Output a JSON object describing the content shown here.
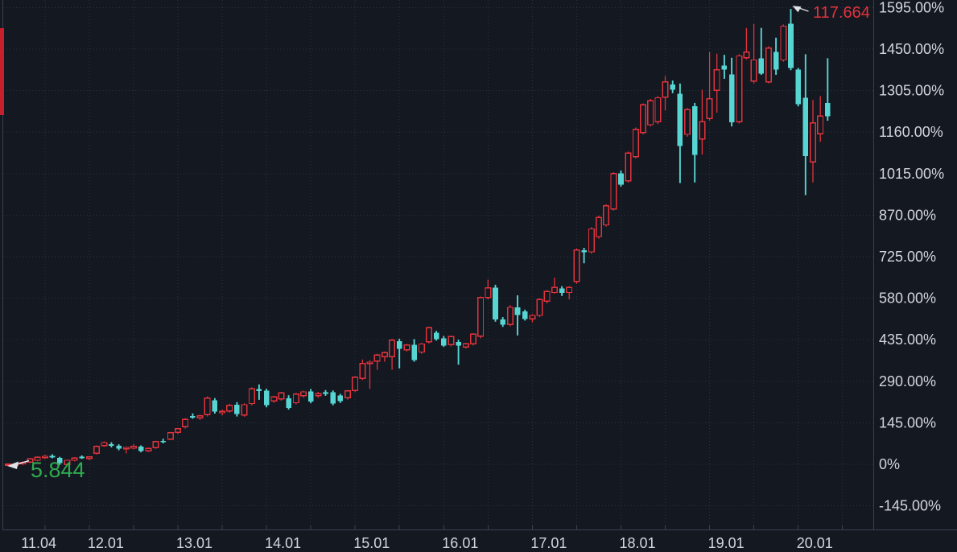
{
  "style": {
    "background": "#141821",
    "grid_color": "#2c3140",
    "axis_line_color": "#3a4050",
    "axis_text_color": "#d4d6dd",
    "up_color": "#e2333c",
    "down_color": "#57d5d2",
    "arrow_color": "#dfe3e8",
    "left_edge_marker_color": "#c5202c"
  },
  "chart_data": {
    "type": "candlestick",
    "title": "",
    "period": "monthly",
    "x_range": {
      "start": "2011.02",
      "end": "2020.05"
    },
    "y_axis": {
      "unit": "%",
      "tick_step_percent": 145,
      "min": -145,
      "max": 1595
    },
    "grid": {
      "horizontal": "dotted",
      "vertical": "dotted"
    },
    "y_tick_labels": [
      "1595.00%",
      "1450.00%",
      "1305.00%",
      "1160.00%",
      "1015.00%",
      "870.00%",
      "725.00%",
      "580.00%",
      "435.00%",
      "290.00%",
      "145.00%",
      "0%",
      "-145.00%"
    ],
    "y_tick_values": [
      1595,
      1450,
      1305,
      1160,
      1015,
      870,
      725,
      580,
      435,
      290,
      145,
      0,
      -145
    ],
    "x_tick_labels": [
      {
        "text": "11.04",
        "candle": 2
      },
      {
        "text": "12.01",
        "candle": 11
      },
      {
        "text": "13.01",
        "candle": 23
      },
      {
        "text": "14.01",
        "candle": 35
      },
      {
        "text": "15.01",
        "candle": 47
      },
      {
        "text": "16.01",
        "candle": 59
      },
      {
        "text": "17.01",
        "candle": 71
      },
      {
        "text": "18.01",
        "candle": 83
      },
      {
        "text": "19.01",
        "candle": 95
      },
      {
        "text": "20.01",
        "candle": 107
      }
    ],
    "ohlc_percent": [
      [
        -3,
        3,
        -7,
        1
      ],
      [
        -2,
        4,
        -6,
        1
      ],
      [
        2,
        10,
        -3,
        6
      ],
      [
        8,
        22,
        4,
        19
      ],
      [
        14,
        28,
        10,
        25
      ],
      [
        24,
        33,
        19,
        28
      ],
      [
        29,
        35,
        21,
        26
      ],
      [
        22,
        26,
        -2,
        4
      ],
      [
        -1,
        16,
        -5,
        14
      ],
      [
        14,
        25,
        10,
        22
      ],
      [
        26,
        31,
        19,
        24
      ],
      [
        20,
        28,
        15,
        26
      ],
      [
        38,
        66,
        34,
        62
      ],
      [
        66,
        80,
        61,
        76
      ],
      [
        70,
        77,
        59,
        65
      ],
      [
        65,
        70,
        49,
        55
      ],
      [
        55,
        61,
        38,
        59
      ],
      [
        56,
        71,
        52,
        62
      ],
      [
        62,
        66,
        42,
        46
      ],
      [
        47,
        58,
        43,
        56
      ],
      [
        58,
        82,
        54,
        79
      ],
      [
        82,
        89,
        73,
        79
      ],
      [
        88,
        113,
        85,
        110
      ],
      [
        112,
        127,
        106,
        124
      ],
      [
        131,
        161,
        125,
        157
      ],
      [
        168,
        178,
        159,
        165
      ],
      [
        162,
        173,
        155,
        169
      ],
      [
        173,
        237,
        167,
        231
      ],
      [
        224,
        231,
        177,
        184
      ],
      [
        180,
        191,
        171,
        185
      ],
      [
        186,
        211,
        180,
        206
      ],
      [
        208,
        217,
        167,
        175
      ],
      [
        172,
        213,
        166,
        208
      ],
      [
        212,
        269,
        206,
        263
      ],
      [
        263,
        279,
        225,
        255
      ],
      [
        257,
        264,
        199,
        206
      ],
      [
        221,
        239,
        215,
        235
      ],
      [
        228,
        253,
        222,
        249
      ],
      [
        231,
        241,
        191,
        197
      ],
      [
        215,
        249,
        209,
        245
      ],
      [
        240,
        257,
        233,
        253
      ],
      [
        255,
        263,
        213,
        219
      ],
      [
        240,
        253,
        232,
        247
      ],
      [
        251,
        259,
        239,
        246
      ],
      [
        252,
        258,
        206,
        212
      ],
      [
        240,
        246,
        214,
        220
      ],
      [
        232,
        260,
        226,
        256
      ],
      [
        258,
        308,
        252,
        304
      ],
      [
        300,
        366,
        294,
        352
      ],
      [
        352,
        363,
        264,
        357
      ],
      [
        360,
        386,
        330,
        382
      ],
      [
        376,
        394,
        358,
        390
      ],
      [
        376,
        438,
        330,
        433
      ],
      [
        430,
        438,
        335,
        404
      ],
      [
        400,
        420,
        394,
        417
      ],
      [
        418,
        437,
        358,
        364
      ],
      [
        392,
        424,
        386,
        420
      ],
      [
        428,
        480,
        422,
        477
      ],
      [
        460,
        466,
        432,
        437
      ],
      [
        440,
        448,
        410,
        415
      ],
      [
        418,
        449,
        412,
        446
      ],
      [
        427,
        435,
        348,
        414
      ],
      [
        410,
        424,
        404,
        421
      ],
      [
        421,
        458,
        415,
        455
      ],
      [
        447,
        586,
        440,
        582
      ],
      [
        582,
        645,
        576,
        616
      ],
      [
        617,
        627,
        498,
        506
      ],
      [
        506,
        514,
        480,
        488
      ],
      [
        488,
        556,
        482,
        548
      ],
      [
        548,
        590,
        450,
        522
      ],
      [
        534,
        540,
        502,
        508
      ],
      [
        508,
        524,
        496,
        520
      ],
      [
        520,
        580,
        514,
        575
      ],
      [
        570,
        608,
        562,
        604
      ],
      [
        600,
        652,
        596,
        618
      ],
      [
        614,
        622,
        588,
        598
      ],
      [
        600,
        622,
        576,
        618
      ],
      [
        638,
        754,
        630,
        748
      ],
      [
        748,
        756,
        702,
        740
      ],
      [
        742,
        828,
        736,
        822
      ],
      [
        795,
        868,
        788,
        862
      ],
      [
        836,
        908,
        830,
        903
      ],
      [
        892,
        1020,
        886,
        1015
      ],
      [
        1016,
        1026,
        970,
        976
      ],
      [
        990,
        1092,
        984,
        1087
      ],
      [
        1074,
        1176,
        1068,
        1170
      ],
      [
        1158,
        1260,
        1152,
        1255
      ],
      [
        1186,
        1276,
        1180,
        1270
      ],
      [
        1196,
        1286,
        1188,
        1280
      ],
      [
        1282,
        1356,
        1236,
        1336
      ],
      [
        1326,
        1340,
        1296,
        1308
      ],
      [
        1294,
        1330,
        982,
        1112
      ],
      [
        1152,
        1244,
        1144,
        1238
      ],
      [
        1250,
        1262,
        984,
        1080
      ],
      [
        1136,
        1308,
        1082,
        1196
      ],
      [
        1208,
        1440,
        1200,
        1276
      ],
      [
        1306,
        1434,
        1228,
        1378
      ],
      [
        1392,
        1430,
        1346,
        1378
      ],
      [
        1362,
        1420,
        1180,
        1194
      ],
      [
        1196,
        1432,
        1190,
        1426
      ],
      [
        1420,
        1524,
        1414,
        1440
      ],
      [
        1338,
        1538,
        1330,
        1412
      ],
      [
        1418,
        1524,
        1360,
        1364
      ],
      [
        1336,
        1460,
        1330,
        1454
      ],
      [
        1440,
        1490,
        1360,
        1378
      ],
      [
        1412,
        1536,
        1406,
        1530
      ],
      [
        1538,
        1590,
        1376,
        1384
      ],
      [
        1378,
        1384,
        1250,
        1258
      ],
      [
        1280,
        1432,
        940,
        1076
      ],
      [
        1056,
        1272,
        984,
        1192
      ],
      [
        1154,
        1286,
        1126,
        1216
      ],
      [
        1262,
        1418,
        1200,
        1216
      ]
    ],
    "annotations": {
      "high": {
        "text": "117.664",
        "color": "#e2333c",
        "points_to_candle": 106
      },
      "low": {
        "text": "5.844",
        "color": "#2dab4f",
        "points_to_candle": 0
      }
    }
  }
}
